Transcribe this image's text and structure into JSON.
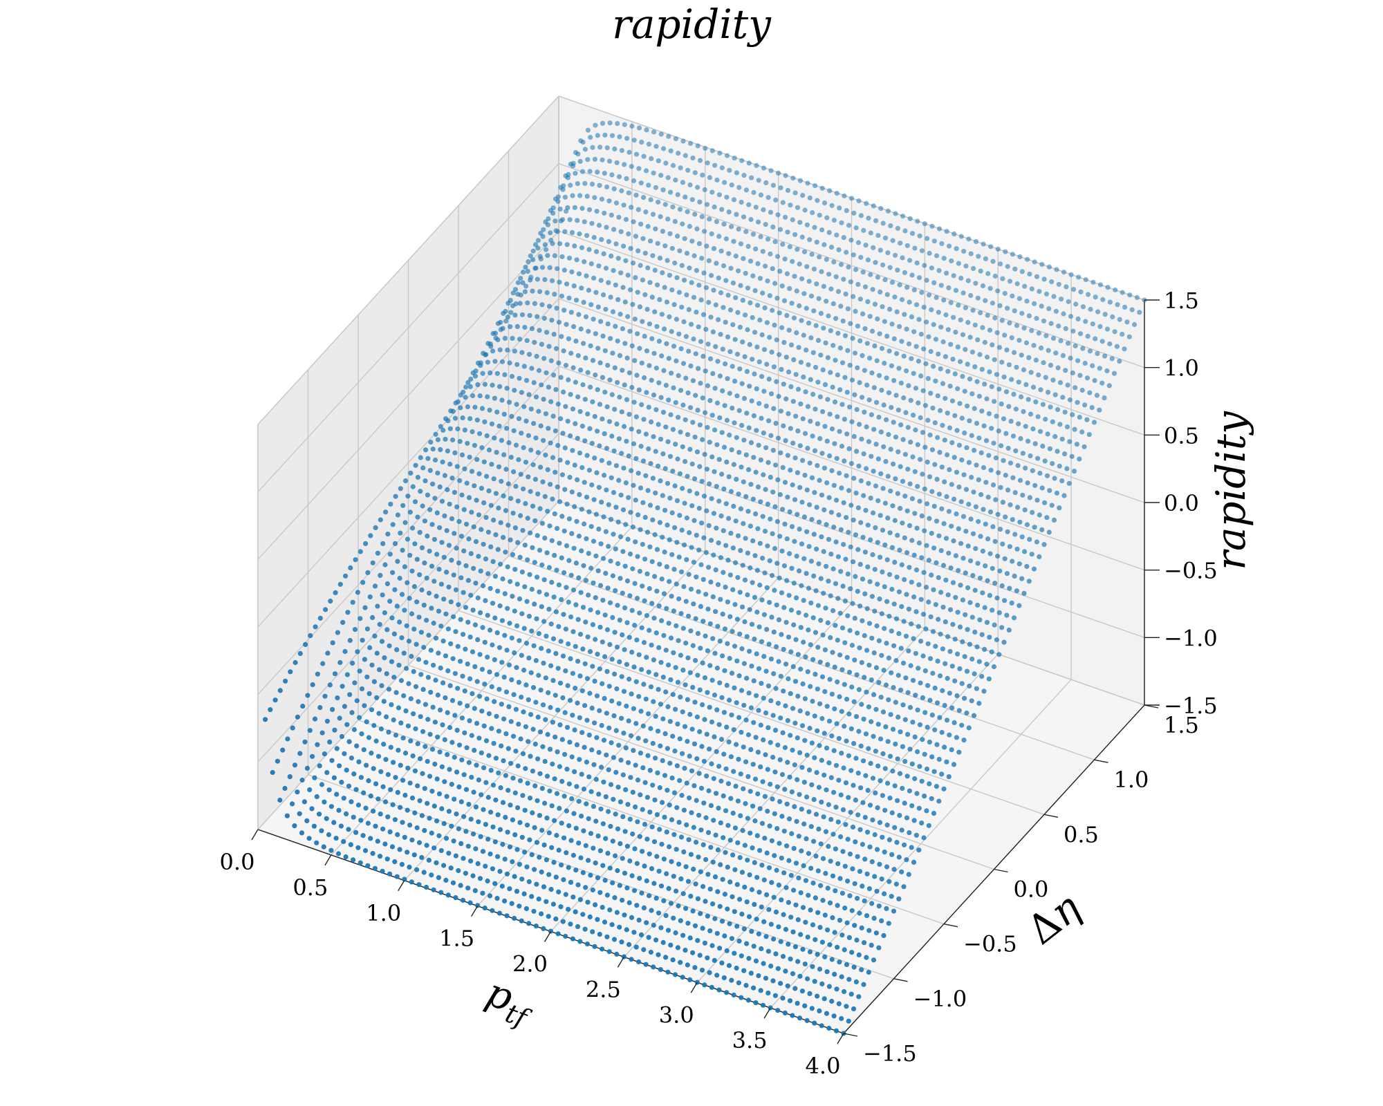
{
  "chart_data": {
    "type": "scatter",
    "title": "rapidity",
    "xlabel": "p_{tf}",
    "ylabel": "Δη",
    "zlabel": "rapidity",
    "xlim": [
      0.0,
      4.0
    ],
    "ylim": [
      -1.5,
      1.5
    ],
    "zlim": [
      -1.5,
      1.5
    ],
    "x_ticks": [
      "0.0",
      "0.5",
      "1.0",
      "1.5",
      "2.0",
      "2.5",
      "3.0",
      "3.5",
      "4.0"
    ],
    "y_ticks": [
      "−1.5",
      "−1.0",
      "−0.5",
      "0.0",
      "0.5",
      "1.0",
      "1.5"
    ],
    "z_ticks": [
      "−1.5",
      "−1.0",
      "−0.5",
      "0.0",
      "0.5",
      "1.0",
      "1.5"
    ],
    "grid": true,
    "series": [
      {
        "color": "#1f77b4",
        "marker": "circle",
        "x_range": [
          0.05,
          4.0
        ],
        "y_range": [
          -1.5,
          1.5
        ],
        "x_count": 80,
        "y_count": 61,
        "relation": "rapidity = asinh(p_tf · sinh(Δη) / sqrt(p_tf² + m²)) — rapidity approaches Δη for large p_tf and falls toward 0 as p_tf → 0"
      }
    ]
  }
}
